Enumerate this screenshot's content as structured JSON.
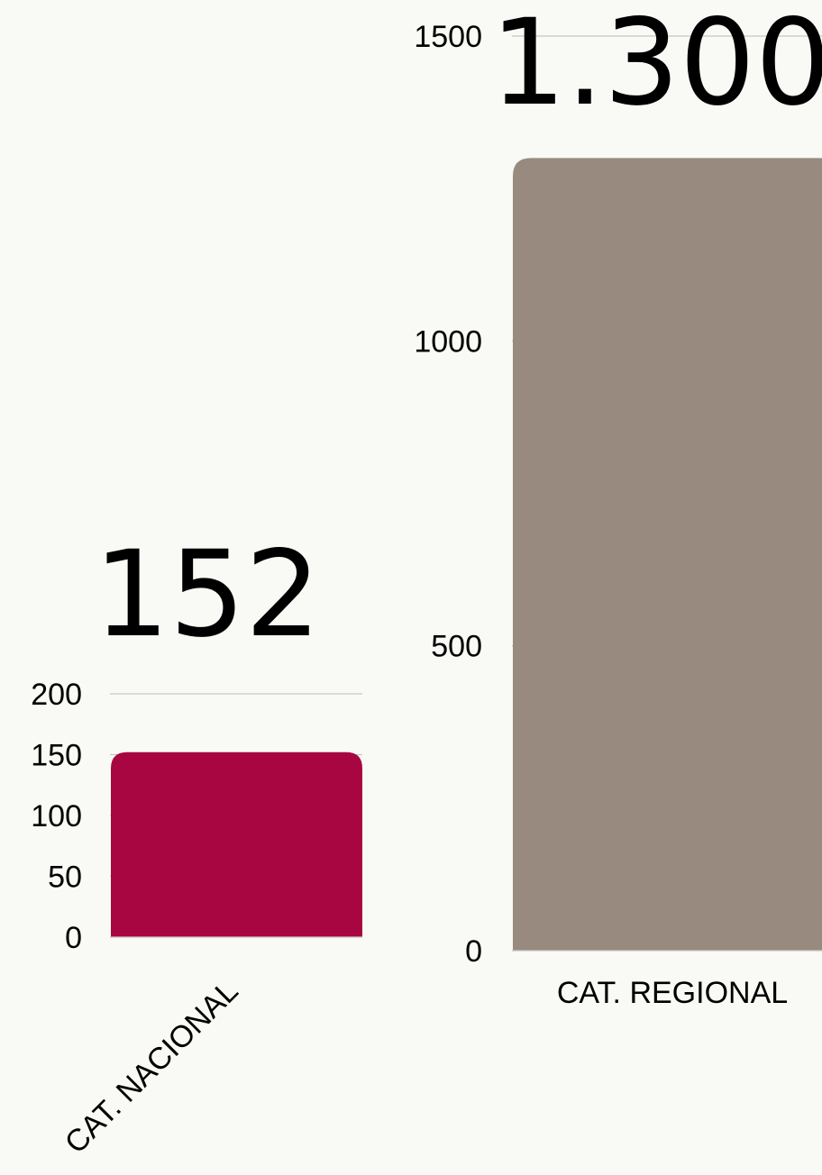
{
  "chart_data": [
    {
      "type": "bar",
      "categories": [
        "CAT. NACIONAL"
      ],
      "values": [
        152
      ],
      "value_label": "152",
      "yticks": [
        0,
        50,
        100,
        150,
        200
      ],
      "ylim": [
        0,
        200
      ],
      "bar_color": "#a80640",
      "grid": true,
      "category_label_rotation": "diagonal"
    },
    {
      "type": "bar",
      "categories": [
        "CAT. REGIONAL"
      ],
      "values": [
        1300
      ],
      "value_label": "1.300",
      "yticks": [
        0,
        500,
        1000,
        1500
      ],
      "ylim": [
        0,
        1500
      ],
      "bar_color": "#998a80",
      "grid": true,
      "category_label_rotation": "horizontal"
    }
  ],
  "colors": {
    "background": "#f9f9f5",
    "gridline": "#c8c8c2",
    "text": "#000000"
  }
}
